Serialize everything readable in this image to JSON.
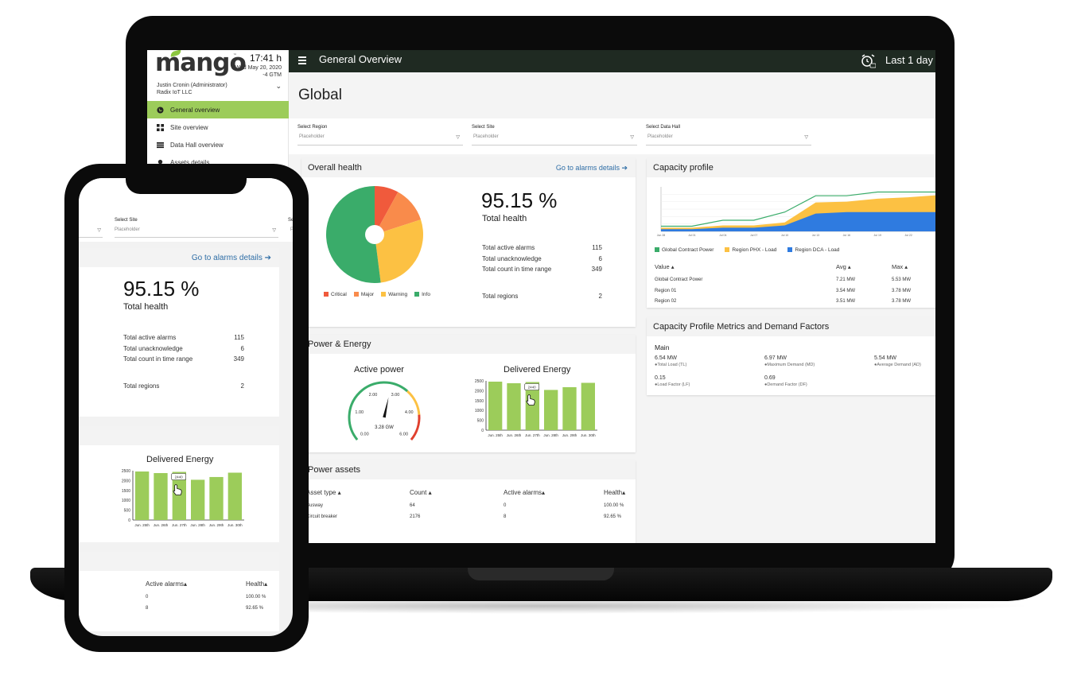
{
  "brand": {
    "logo": "mango",
    "tm": "™"
  },
  "clock": {
    "time": "17:41 h",
    "date": "Wed May 20, 2020",
    "tz": "-4 GTM"
  },
  "user": {
    "name": "Justin Cronin (Administrator)",
    "org": "Radix IoT LLC"
  },
  "sidebar": {
    "items": [
      {
        "label": "General overview",
        "icon": "globe-icon"
      },
      {
        "label": "Site overview",
        "icon": "grid-icon"
      },
      {
        "label": "Data Hall overview",
        "icon": "list-icon"
      },
      {
        "label": "Assets details",
        "icon": "pin-icon"
      }
    ]
  },
  "header": {
    "title": "General Overview",
    "range": "Last 1 day"
  },
  "page": {
    "title": "Global"
  },
  "filters": [
    {
      "label": "Select Region",
      "placeholder": "Placeholder"
    },
    {
      "label": "Select Site",
      "placeholder": "Placeholder"
    },
    {
      "label": "Select Data Hall",
      "placeholder": "Placeholder"
    }
  ],
  "health": {
    "title": "Overall health",
    "link": "Go to alarms details",
    "value": "95.15 %",
    "caption": "Total health",
    "rows": [
      {
        "label": "Total active alarms",
        "value": "115"
      },
      {
        "label": "Total unacknowledge",
        "value": "6"
      },
      {
        "label": "Total count in time range",
        "value": "349"
      }
    ],
    "regions_label": "Total regions",
    "regions_value": "2",
    "legend": [
      {
        "name": "Critical",
        "color": "#f05a3c"
      },
      {
        "name": "Major",
        "color": "#f98b4b"
      },
      {
        "name": "Warning",
        "color": "#fcc143"
      },
      {
        "name": "Info",
        "color": "#3aac6a"
      }
    ]
  },
  "chart_data": [
    {
      "type": "pie",
      "labels": [
        "Critical",
        "Major",
        "Warning",
        "Info"
      ],
      "values": [
        8,
        12,
        28,
        52
      ],
      "colors": [
        "#f05a3c",
        "#f98b4b",
        "#fcc143",
        "#3aac6a"
      ]
    },
    {
      "type": "bar",
      "title": "Delivered Energy",
      "categories": [
        "Jun. 25th",
        "Jun. 26th",
        "Jun. 27th",
        "Jun. 28th",
        "Jun. 29th",
        "Jun. 30th"
      ],
      "values": [
        2460,
        2380,
        2440,
        2040,
        2180,
        2400
      ],
      "ylim": [
        0,
        2500
      ],
      "yticks": [
        "0",
        "500",
        "1000",
        "1500",
        "2000",
        "2500"
      ],
      "tooltip": "2440",
      "color": "#9ccc5a"
    },
    {
      "type": "area",
      "title": "Capacity profile",
      "x": [
        "Jun 28",
        "Jul 01",
        "Jul 04",
        "Jul 07",
        "Jul 10",
        "Jul 13",
        "Jul 16",
        "Jul 19",
        "Jul 22",
        "Jul 25"
      ],
      "series": [
        {
          "name": "Global Contract Power",
          "values": [
            0.7,
            0.7,
            1.5,
            1.5,
            2.6,
            4.8,
            4.8,
            5.3,
            5.3,
            5.3
          ],
          "color": "#3aac6a"
        },
        {
          "name": "Region PHX - Load",
          "values": [
            0.5,
            0.5,
            0.8,
            0.8,
            1.2,
            3.9,
            4.0,
            4.4,
            4.6,
            4.9
          ],
          "color": "#fcc143"
        },
        {
          "name": "Region DCA - Load",
          "values": [
            0.3,
            0.3,
            0.5,
            0.5,
            0.8,
            2.4,
            2.6,
            2.6,
            2.6,
            2.6
          ],
          "color": "#2f7be0"
        }
      ],
      "ylim": [
        0,
        6
      ]
    },
    {
      "type": "gauge",
      "title": "Active power",
      "value": 3.28,
      "range": [
        0,
        6
      ],
      "ticks": [
        "0.00",
        "1.00",
        "2.00",
        "3.00",
        "4.00",
        "6.00"
      ],
      "readout": "3.28 GW"
    }
  ],
  "capacity": {
    "title": "Capacity profile",
    "head": {
      "value": "Value",
      "avg": "Avg",
      "max": "Max"
    },
    "rows": [
      {
        "value": "Global Contract Power",
        "avg": "7.21 MW",
        "max": "5.53 MW"
      },
      {
        "value": "Region 01",
        "avg": "3.54 MW",
        "max": "3.78 MW"
      },
      {
        "value": "Region 02",
        "avg": "3.51 MW",
        "max": "3.78 MW"
      }
    ]
  },
  "metrics": {
    "title": "Capacity Profile Metrics and Demand Factors",
    "section": "Main",
    "items": [
      {
        "value": "6.54 MW",
        "label": "Total Load (TL)"
      },
      {
        "value": "6.97 MW",
        "label": "Maximum Demand (MD)"
      },
      {
        "value": "5.54 MW",
        "label": "Average Demand (AD)"
      },
      {
        "value": "0.15",
        "label": "Load Factor (LF)"
      },
      {
        "value": "0.69",
        "label": "Demand Factor (DF)"
      }
    ]
  },
  "power": {
    "title": "Power & Energy",
    "active": "Active power",
    "delivered": "Delivered Energy"
  },
  "assets": {
    "title": "Power assets",
    "head": {
      "type": "Asset type",
      "count": "Count",
      "alarms": "Active alarms",
      "health": "Health"
    },
    "rows": [
      {
        "type": "Busway",
        "count": "64",
        "alarms": "0",
        "health": "100.00 %"
      },
      {
        "type": "Circuit breaker",
        "count": "2176",
        "alarms": "8",
        "health": "92.65 %"
      }
    ]
  },
  "phone": {
    "select_site": "Select Site",
    "placeholder": "Placeholder",
    "cut_label": "Se",
    "cut_sel": "P"
  }
}
